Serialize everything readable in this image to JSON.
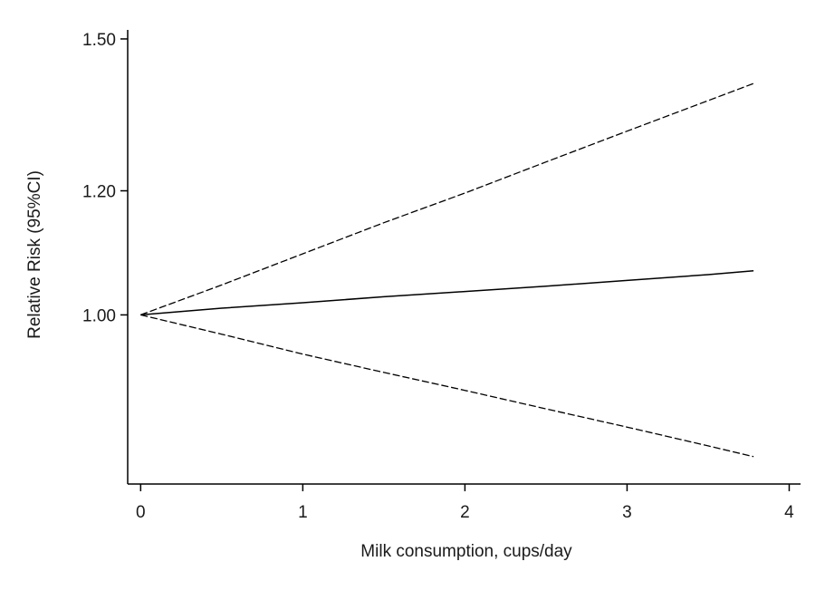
{
  "chart_data": {
    "type": "line",
    "title": "",
    "xlabel": "Milk consumption, cups/day",
    "ylabel": "Relative  Risk (95%CI)",
    "xlim": [
      -0.08,
      4.07
    ],
    "ylim_log": [
      0.78,
      1.52
    ],
    "y_scale": "log",
    "x_ticks": [
      0,
      1,
      2,
      3,
      4
    ],
    "x_tick_labels": [
      "0",
      "1",
      "2",
      "3",
      "4"
    ],
    "y_ticks": [
      1.0,
      1.2,
      1.5
    ],
    "y_tick_labels": [
      "1.00",
      "1.20",
      "1.50"
    ],
    "grid": false,
    "legend": "none",
    "series": [
      {
        "style": "solid",
        "color": "#000000",
        "x": [
          0,
          0.5,
          1,
          1.5,
          2,
          2.5,
          3,
          3.5,
          3.78
        ],
        "y": [
          1.0,
          1.01,
          1.018,
          1.027,
          1.035,
          1.043,
          1.052,
          1.061,
          1.067
        ]
      },
      {
        "style": "dashed",
        "color": "#000000",
        "x": [
          0,
          0.5,
          1,
          1.5,
          2,
          2.5,
          3,
          3.5,
          3.78
        ],
        "y": [
          1.0,
          1.045,
          1.094,
          1.145,
          1.196,
          1.252,
          1.31,
          1.37,
          1.405
        ]
      },
      {
        "style": "dashed",
        "color": "#000000",
        "x": [
          0,
          0.5,
          1,
          1.5,
          2,
          2.5,
          3,
          3.5,
          3.78
        ],
        "y": [
          1.0,
          0.972,
          0.944,
          0.919,
          0.895,
          0.871,
          0.848,
          0.825,
          0.812
        ]
      }
    ]
  }
}
